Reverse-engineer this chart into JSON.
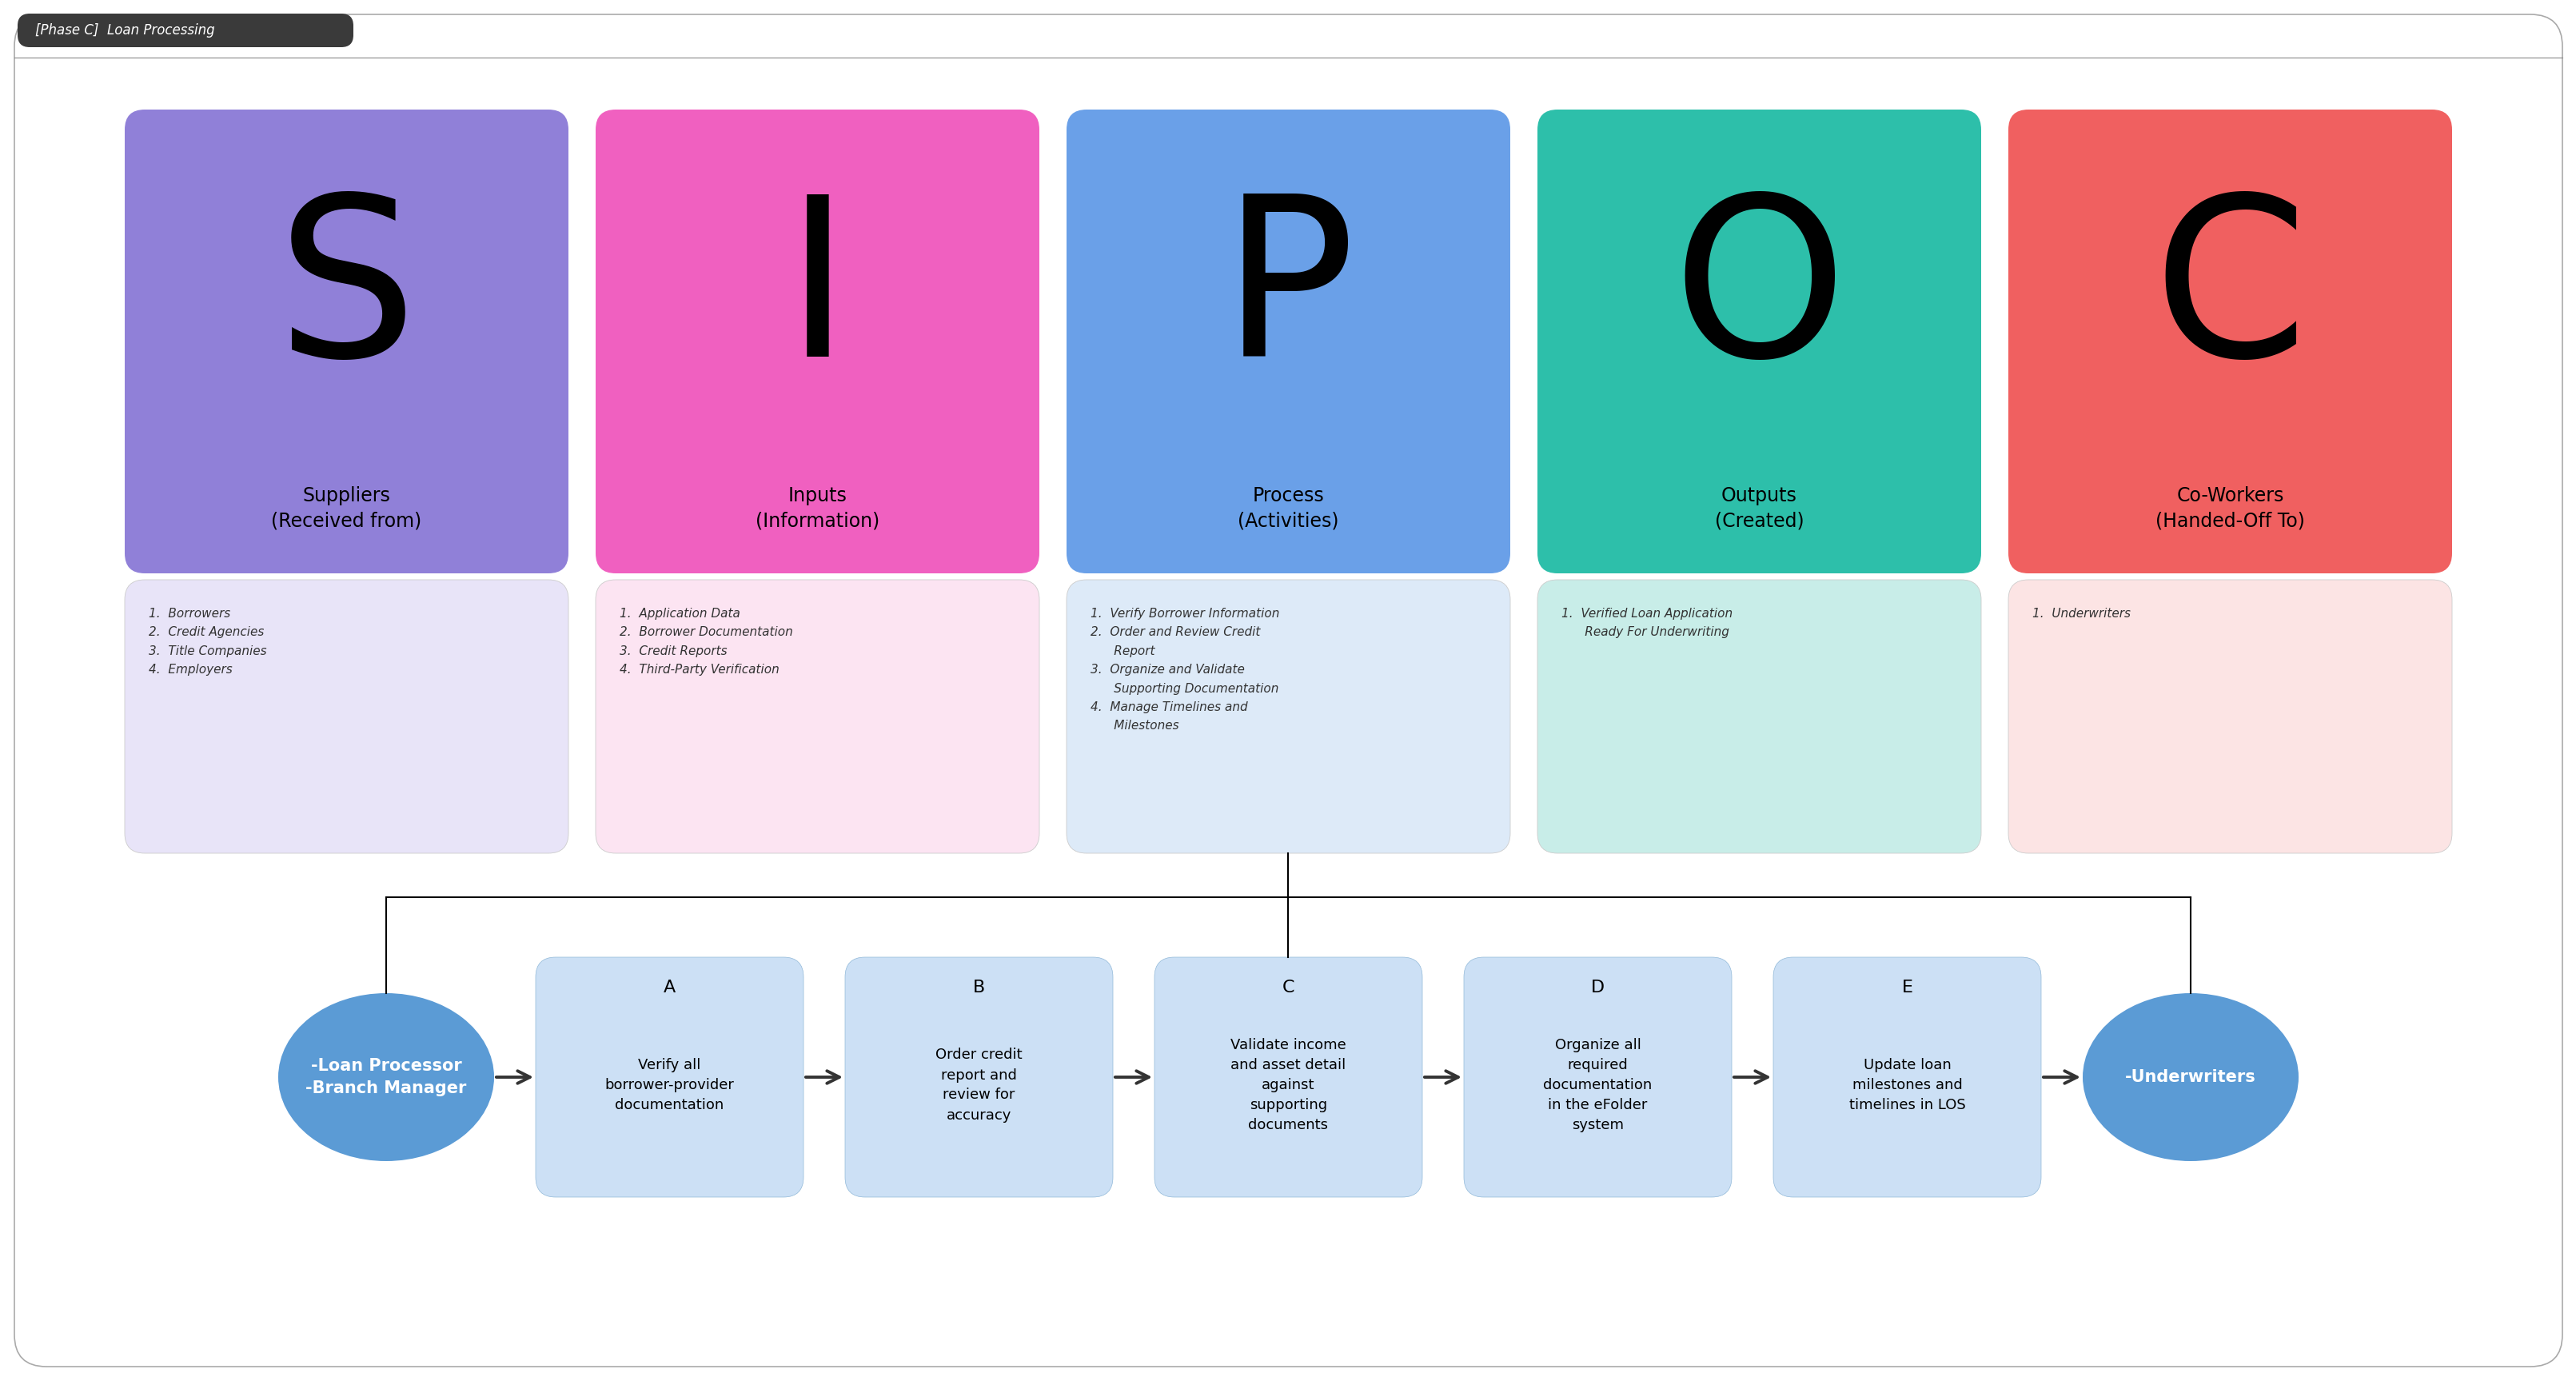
{
  "title": "[Phase C]  Loan Processing",
  "background_color": "#ffffff",
  "border_color": "#bbbbbb",
  "title_bg": "#3a3a3a",
  "title_color": "#ffffff",
  "sipoc_columns": [
    {
      "letter": "S",
      "label": "Suppliers\n(Received from)",
      "color": "#9080d8",
      "light_color": "#e8e4f8"
    },
    {
      "letter": "I",
      "label": "Inputs\n(Information)",
      "color": "#f060c0",
      "light_color": "#fce4f2"
    },
    {
      "letter": "P",
      "label": "Process\n(Activities)",
      "color": "#6aa0e8",
      "light_color": "#ddeaf8"
    },
    {
      "letter": "O",
      "label": "Outputs\n(Created)",
      "color": "#2dbfaa",
      "light_color": "#c8ede8"
    },
    {
      "letter": "C",
      "label": "Co-Workers\n(Handed-Off To)",
      "color": "#f06060",
      "light_color": "#fce4e4"
    }
  ],
  "sipoc_items": [
    "1.  Borrowers\n2.  Credit Agencies\n3.  Title Companies\n4.  Employers",
    "1.  Application Data\n2.  Borrower Documentation\n3.  Credit Reports\n4.  Third-Party Verification",
    "1.  Verify Borrower Information\n2.  Order and Review Credit\n      Report\n3.  Organize and Validate\n      Supporting Documentation\n4.  Manage Timelines and\n      Milestones",
    "1.  Verified Loan Application\n      Ready For Underwriting",
    "1.  Underwriters"
  ],
  "flow_nodes": [
    {
      "label": "-Loan Processor\n-Branch Manager",
      "shape": "ellipse",
      "color": "#5b9bd5",
      "text_color": "#ffffff"
    },
    {
      "letter": "A",
      "label": "Verify all\nborrower-provider\ndocumentation",
      "shape": "rect",
      "color": "#cce0f5",
      "text_color": "#000000"
    },
    {
      "letter": "B",
      "label": "Order credit\nreport and\nreview for\naccuracy",
      "shape": "rect",
      "color": "#cce0f5",
      "text_color": "#000000"
    },
    {
      "letter": "C",
      "label": "Validate income\nand asset detail\nagainst\nsupporting\ndocuments",
      "shape": "rect",
      "color": "#cce0f5",
      "text_color": "#000000"
    },
    {
      "letter": "D",
      "label": "Organize all\nrequired\ndocumentation\nin the eFolder\nsystem",
      "shape": "rect",
      "color": "#cce0f5",
      "text_color": "#000000"
    },
    {
      "letter": "E",
      "label": "Update loan\nmilestones and\ntimelines in LOS",
      "shape": "rect",
      "color": "#cce0f5",
      "text_color": "#000000"
    },
    {
      "label": "-Underwriters",
      "shape": "ellipse",
      "color": "#5b9bd5",
      "text_color": "#ffffff"
    }
  ]
}
